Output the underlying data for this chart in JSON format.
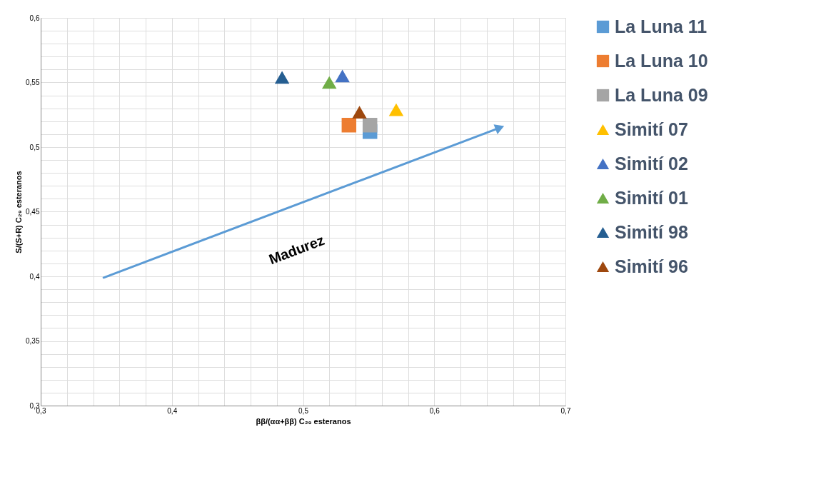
{
  "chart_data": {
    "type": "scatter",
    "xlabel": "ββ/(αα+ββ) C₂₉ esteranos",
    "ylabel": "S/(S+R) C₂₉ esteranos",
    "xlim": [
      0.3,
      0.7
    ],
    "ylim": [
      0.3,
      0.6
    ],
    "xticks": [
      {
        "value": 0.3,
        "label": "0,3"
      },
      {
        "value": 0.32,
        "label": null
      },
      {
        "value": 0.34,
        "label": null
      },
      {
        "value": 0.36,
        "label": null
      },
      {
        "value": 0.38,
        "label": null
      },
      {
        "value": 0.4,
        "label": "0,4"
      },
      {
        "value": 0.42,
        "label": null
      },
      {
        "value": 0.44,
        "label": null
      },
      {
        "value": 0.46,
        "label": null
      },
      {
        "value": 0.48,
        "label": null
      },
      {
        "value": 0.5,
        "label": "0,5"
      },
      {
        "value": 0.52,
        "label": null
      },
      {
        "value": 0.54,
        "label": null
      },
      {
        "value": 0.56,
        "label": null
      },
      {
        "value": 0.58,
        "label": null
      },
      {
        "value": 0.6,
        "label": "0,6"
      },
      {
        "value": 0.62,
        "label": null
      },
      {
        "value": 0.64,
        "label": null
      },
      {
        "value": 0.66,
        "label": null
      },
      {
        "value": 0.68,
        "label": null
      },
      {
        "value": 0.7,
        "label": "0,7"
      }
    ],
    "yticks": [
      {
        "value": 0.3,
        "label": "0,3"
      },
      {
        "value": 0.31,
        "label": null
      },
      {
        "value": 0.32,
        "label": null
      },
      {
        "value": 0.33,
        "label": null
      },
      {
        "value": 0.34,
        "label": null
      },
      {
        "value": 0.35,
        "label": "0,35"
      },
      {
        "value": 0.36,
        "label": null
      },
      {
        "value": 0.37,
        "label": null
      },
      {
        "value": 0.38,
        "label": null
      },
      {
        "value": 0.39,
        "label": null
      },
      {
        "value": 0.4,
        "label": "0,4"
      },
      {
        "value": 0.41,
        "label": null
      },
      {
        "value": 0.42,
        "label": null
      },
      {
        "value": 0.43,
        "label": null
      },
      {
        "value": 0.44,
        "label": null
      },
      {
        "value": 0.45,
        "label": "0,45"
      },
      {
        "value": 0.46,
        "label": null
      },
      {
        "value": 0.47,
        "label": null
      },
      {
        "value": 0.48,
        "label": null
      },
      {
        "value": 0.49,
        "label": null
      },
      {
        "value": 0.5,
        "label": "0,5"
      },
      {
        "value": 0.51,
        "label": null
      },
      {
        "value": 0.52,
        "label": null
      },
      {
        "value": 0.53,
        "label": null
      },
      {
        "value": 0.54,
        "label": null
      },
      {
        "value": 0.55,
        "label": "0,55"
      },
      {
        "value": 0.56,
        "label": null
      },
      {
        "value": 0.57,
        "label": null
      },
      {
        "value": 0.58,
        "label": null
      },
      {
        "value": 0.59,
        "label": null
      },
      {
        "value": 0.6,
        "label": "0,6"
      }
    ],
    "grid": true,
    "legend": "right",
    "annotations": [
      "Madurez"
    ],
    "series": [
      {
        "name": "La Luna 11",
        "color": "#5b9bd5",
        "marker": "square",
        "x": [
          0.551
        ],
        "values": [
          0.512
        ]
      },
      {
        "name": "La Luna 10",
        "color": "#ed7d31",
        "marker": "square",
        "x": [
          0.535
        ],
        "values": [
          0.517
        ]
      },
      {
        "name": "La Luna 09",
        "color": "#a5a5a5",
        "marker": "square",
        "x": [
          0.551
        ],
        "values": [
          0.517
        ]
      },
      {
        "name": "Simití 07",
        "color": "#ffc000",
        "marker": "triangle",
        "x": [
          0.571
        ],
        "values": [
          0.529
        ]
      },
      {
        "name": "Simití 02",
        "color": "#4472c4",
        "marker": "triangle",
        "x": [
          0.53
        ],
        "values": [
          0.555
        ]
      },
      {
        "name": "Simití 01",
        "color": "#70ad47",
        "marker": "triangle",
        "x": [
          0.52
        ],
        "values": [
          0.55
        ]
      },
      {
        "name": "Simití 98",
        "color": "#255e91",
        "marker": "triangle",
        "x": [
          0.484
        ],
        "values": [
          0.554
        ]
      },
      {
        "name": "Simití 96",
        "color": "#9e480e",
        "marker": "triangle",
        "x": [
          0.543
        ],
        "values": [
          0.527
        ]
      },
      {
        "type": "line",
        "color": "#5b9bd5",
        "marker": "triangle",
        "x": [
          0.348,
          0.65
        ],
        "values": [
          0.399,
          0.515
        ]
      }
    ]
  }
}
